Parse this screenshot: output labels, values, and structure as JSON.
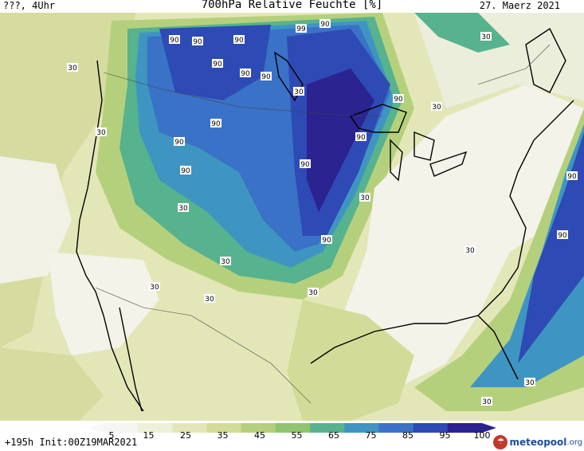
{
  "header": {
    "left": "???, 4Uhr",
    "title": "700hPa Relative Feuchte [%]",
    "date": "27. Maerz 2021"
  },
  "footer": {
    "run": "+195h Init:00Z19MAR2021",
    "logo": {
      "text": "meteopool",
      "tld": ".org"
    }
  },
  "colorbar": {
    "ticks": [
      "5",
      "15",
      "25",
      "35",
      "45",
      "55",
      "65",
      "75",
      "85",
      "95",
      "100"
    ],
    "colors": [
      "#f5f5f2",
      "#eef0d8",
      "#e3e7b8",
      "#d2dc98",
      "#b5d07c",
      "#8fc56e",
      "#57b28e",
      "#3f95c2",
      "#3a72c8",
      "#2e4ab4",
      "#2a2390"
    ]
  },
  "contour_labels": [
    "90",
    "90",
    "90",
    "90",
    "99",
    "90",
    "90",
    "90",
    "30",
    "90",
    "90",
    "30",
    "90",
    "30",
    "90",
    "90",
    "90",
    "90",
    "30",
    "30",
    "30",
    "90",
    "90",
    "30",
    "30",
    "30",
    "30",
    "30",
    "30",
    "30",
    "30"
  ]
}
